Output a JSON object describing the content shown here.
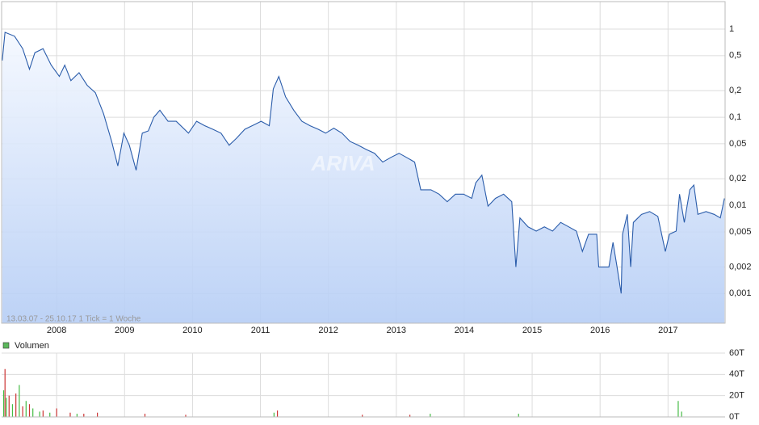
{
  "chart_data": [
    {
      "type": "line",
      "note": "13.03.07 - 25.10.17   1 Tick = 1 Woche",
      "watermark": "ARIVA",
      "color": "#2a5caa",
      "log_scale": true,
      "grid": true,
      "x": [
        2007.2,
        2007.24,
        2007.38,
        2007.5,
        2007.6,
        2007.68,
        2007.8,
        2007.92,
        2008.04,
        2008.12,
        2008.21,
        2008.33,
        2008.45,
        2008.57,
        2008.69,
        2008.81,
        2008.9,
        2008.99,
        2009.07,
        2009.17,
        2009.26,
        2009.35,
        2009.43,
        2009.52,
        2009.64,
        2009.76,
        2009.94,
        2010.06,
        2010.18,
        2010.3,
        2010.42,
        2010.54,
        2010.65,
        2010.77,
        2010.89,
        2011.01,
        2011.13,
        2011.19,
        2011.27,
        2011.37,
        2011.49,
        2011.61,
        2011.73,
        2011.85,
        2011.96,
        2012.08,
        2012.2,
        2012.32,
        2012.44,
        2012.56,
        2012.68,
        2012.8,
        2012.92,
        2013.04,
        2013.15,
        2013.27,
        2013.36,
        2013.51,
        2013.63,
        2013.75,
        2013.87,
        2013.99,
        2014.11,
        2014.17,
        2014.26,
        2014.35,
        2014.46,
        2014.58,
        2014.7,
        2014.76,
        2014.82,
        2014.94,
        2015.06,
        2015.18,
        2015.3,
        2015.42,
        2015.54,
        2015.65,
        2015.74,
        2015.83,
        2015.95,
        2015.98,
        2016.13,
        2016.19,
        2016.25,
        2016.31,
        2016.33,
        2016.4,
        2016.45,
        2016.49,
        2016.61,
        2016.73,
        2016.85,
        2016.96,
        2017.02,
        2017.12,
        2017.17,
        2017.24,
        2017.32,
        2017.38,
        2017.44,
        2017.56,
        2017.68,
        2017.77,
        2017.83
      ],
      "values": [
        0.44,
        0.92,
        0.83,
        0.6,
        0.35,
        0.54,
        0.6,
        0.39,
        0.29,
        0.39,
        0.26,
        0.32,
        0.23,
        0.19,
        0.11,
        0.053,
        0.028,
        0.066,
        0.048,
        0.025,
        0.066,
        0.07,
        0.1,
        0.12,
        0.09,
        0.09,
        0.066,
        0.09,
        0.08,
        0.073,
        0.066,
        0.048,
        0.058,
        0.073,
        0.081,
        0.09,
        0.08,
        0.21,
        0.29,
        0.17,
        0.12,
        0.09,
        0.08,
        0.073,
        0.066,
        0.075,
        0.066,
        0.053,
        0.048,
        0.043,
        0.039,
        0.031,
        0.035,
        0.039,
        0.035,
        0.031,
        0.015,
        0.015,
        0.0134,
        0.011,
        0.0134,
        0.0134,
        0.012,
        0.018,
        0.022,
        0.0098,
        0.012,
        0.0134,
        0.011,
        0.002,
        0.0072,
        0.0057,
        0.0051,
        0.0057,
        0.0051,
        0.0064,
        0.0057,
        0.0051,
        0.003,
        0.0047,
        0.0047,
        0.002,
        0.002,
        0.0038,
        0.002,
        0.001,
        0.0047,
        0.0079,
        0.002,
        0.0064,
        0.0079,
        0.0085,
        0.0075,
        0.003,
        0.0047,
        0.0051,
        0.0134,
        0.0064,
        0.015,
        0.017,
        0.0079,
        0.0085,
        0.0079,
        0.0072,
        0.012
      ],
      "xlim": [
        2007.19,
        2017.84
      ],
      "xticks": [
        2008,
        2009,
        2010,
        2011,
        2012,
        2013,
        2014,
        2015,
        2016,
        2017
      ],
      "ylim": [
        0.00046,
        2.05
      ],
      "yticks": [
        1,
        {
          "value": 0.5,
          "label": "0,5"
        },
        {
          "value": 0.2,
          "label": "0,2"
        },
        {
          "value": 0.1,
          "label": "0,1"
        },
        {
          "value": 0.05,
          "label": "0,05"
        },
        {
          "value": 0.02,
          "label": "0,02"
        },
        {
          "value": 0.01,
          "label": "0,01"
        },
        {
          "value": 0.005,
          "label": "0,005"
        },
        {
          "value": 0.002,
          "label": "0,002"
        },
        {
          "value": 0.001,
          "label": "0,001"
        }
      ]
    },
    {
      "type": "bar",
      "legend": "Volumen",
      "legend_color": "#5cb85c",
      "grid": true,
      "series": [
        {
          "color": "#44bb44",
          "x": [
            2007.22,
            2007.26,
            2007.35,
            2007.45,
            2007.55,
            2007.65,
            2007.75,
            2007.9,
            2008.3,
            2011.2,
            2013.5,
            2014.8,
            2017.15,
            2017.2
          ],
          "values": [
            25,
            18,
            12,
            30,
            15,
            8,
            5,
            4,
            3,
            4,
            3,
            3,
            15,
            5
          ]
        },
        {
          "color": "#cc3333",
          "x": [
            2007.24,
            2007.3,
            2007.4,
            2007.5,
            2007.6,
            2007.8,
            2008.0,
            2008.2,
            2008.4,
            2008.6,
            2009.3,
            2009.9,
            2011.25,
            2012.5,
            2013.2
          ],
          "values": [
            45,
            20,
            22,
            10,
            12,
            6,
            8,
            4,
            3,
            4,
            3,
            2,
            6,
            2,
            2
          ]
        }
      ],
      "xlim": [
        2007.19,
        2017.84
      ],
      "xticks": [
        2008,
        2009,
        2010,
        2011,
        2012,
        2013,
        2014,
        2015,
        2016,
        2017
      ],
      "ylim": [
        0,
        60
      ],
      "yticks": [
        {
          "value": 0,
          "label": "0T"
        },
        {
          "value": 20,
          "label": "20T"
        },
        {
          "value": 40,
          "label": "40T"
        },
        {
          "value": 60,
          "label": "60T"
        }
      ]
    }
  ]
}
